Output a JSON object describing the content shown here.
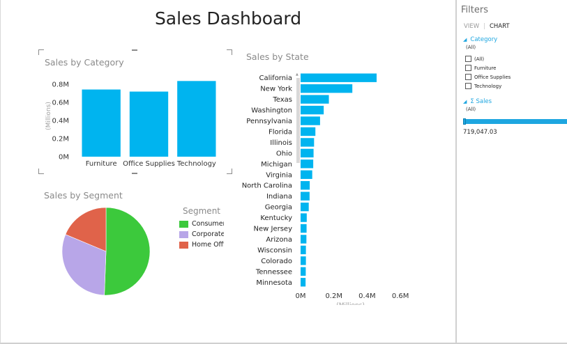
{
  "dashboard": {
    "title": "Sales Dashboard"
  },
  "colors": {
    "bar": "#00b4ef",
    "consumer": "#3cc93c",
    "corporate": "#b8a6e8",
    "home_office": "#e0634a",
    "accent": "#1ea6e0"
  },
  "chart_data": [
    {
      "type": "bar",
      "title": "Sales by Category",
      "categories": [
        "Furniture",
        "Office Supplies",
        "Technology"
      ],
      "values": [
        0.742,
        0.719,
        0.836
      ],
      "ylabel": "(Millions)",
      "ylim": [
        0,
        0.9
      ],
      "yticks": [
        0,
        0.2,
        0.4,
        0.6,
        0.8
      ],
      "ytick_labels": [
        "0M",
        "0.2M",
        "0.4M",
        "0.6M",
        "0.8M"
      ],
      "grid": false
    },
    {
      "type": "bar",
      "orientation": "horizontal",
      "title": "Sales by State",
      "categories": [
        "California",
        "New York",
        "Texas",
        "Washington",
        "Pennsylvania",
        "Florida",
        "Illinois",
        "Ohio",
        "Michigan",
        "Virginia",
        "North Carolina",
        "Indiana",
        "Georgia",
        "Kentucky",
        "New Jersey",
        "Arizona",
        "Wisconsin",
        "Colorado",
        "Tennessee",
        "Minnesota"
      ],
      "values": [
        0.457,
        0.311,
        0.17,
        0.139,
        0.117,
        0.089,
        0.081,
        0.078,
        0.076,
        0.07,
        0.055,
        0.054,
        0.049,
        0.037,
        0.036,
        0.035,
        0.032,
        0.032,
        0.031,
        0.03
      ],
      "xlabel": "(Millions)",
      "xlim": [
        0,
        0.7
      ],
      "xticks": [
        0,
        0.2,
        0.4,
        0.6
      ],
      "xtick_labels": [
        "0M",
        "0.2M",
        "0.4M",
        "0.6M"
      ],
      "grid": false
    },
    {
      "type": "pie",
      "title": "Sales by Segment",
      "legend_title": "Segment",
      "labels": [
        "Consumer",
        "Corporate",
        "Home Office"
      ],
      "legend_labels": [
        "Consumer",
        "Corporate",
        "Home Offi"
      ],
      "values": [
        50.6,
        30.7,
        18.7
      ],
      "legend_position": "right"
    }
  ],
  "filters": {
    "title": "Filters",
    "tabs": {
      "view": "VIEW",
      "chart": "CHART"
    },
    "category": {
      "label": "Category",
      "summary": "(All)",
      "options": [
        "(All)",
        "Furniture",
        "Office Supplies",
        "Technology"
      ]
    },
    "sales": {
      "label": "Σ Sales",
      "summary": "(All)",
      "value": "719,047.03",
      "range_fraction": 1.0
    }
  }
}
